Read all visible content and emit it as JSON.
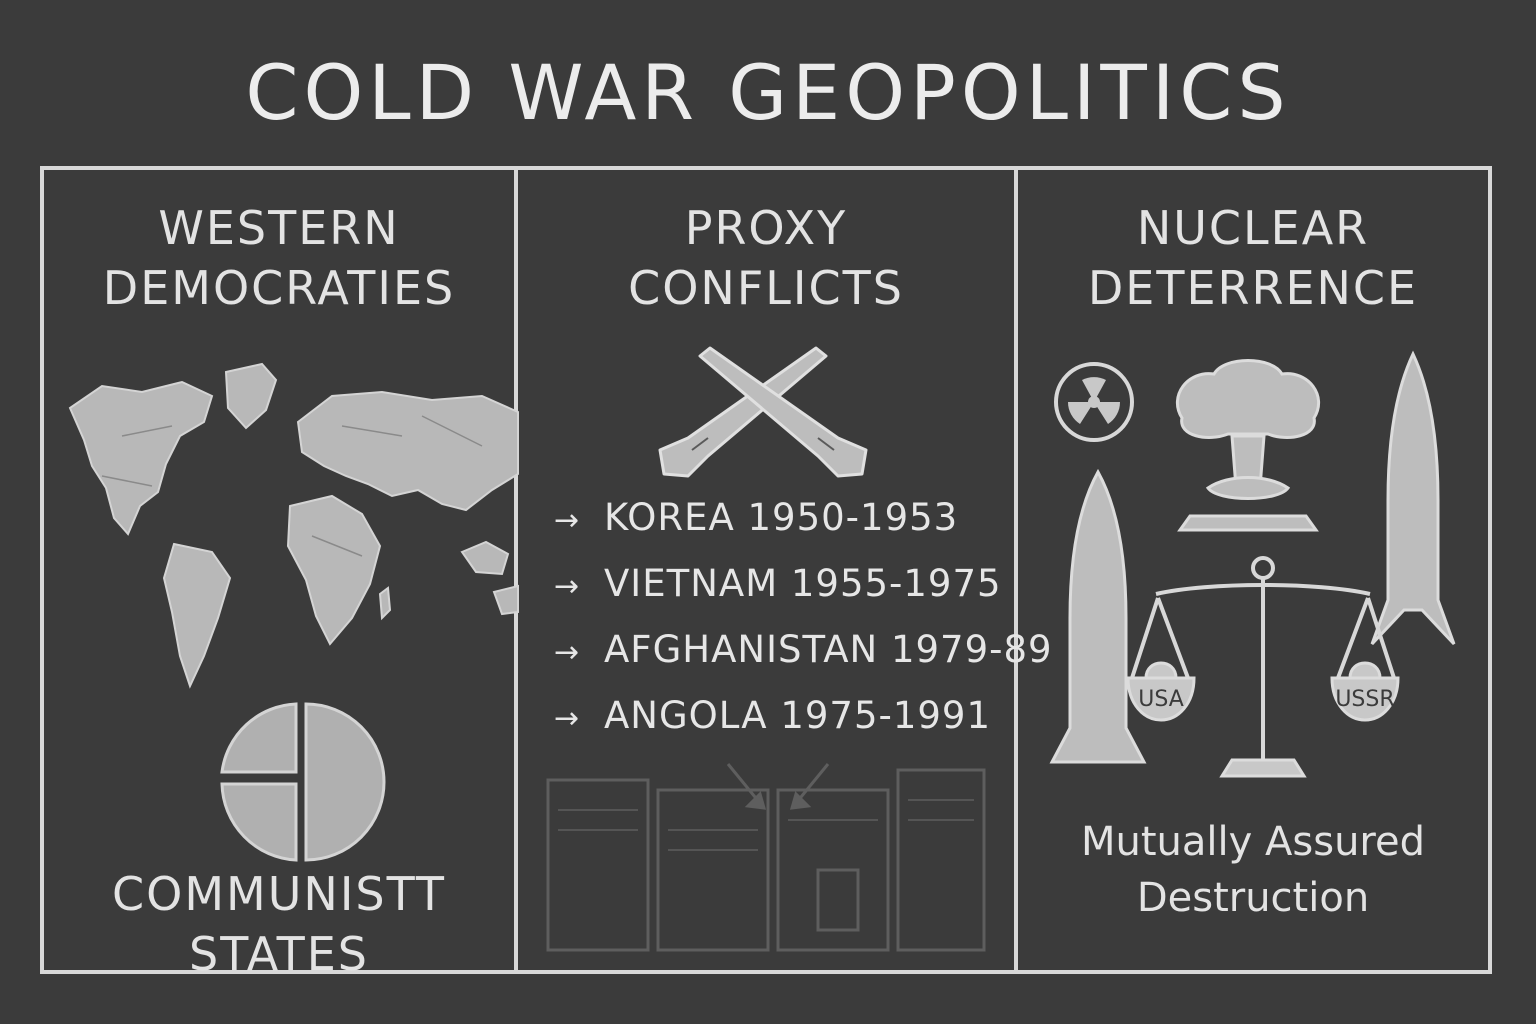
{
  "title": "COLD WAR GEOPOLITICS",
  "panels": {
    "western": {
      "heading_line1": "WESTERN",
      "heading_line2": "DEMOCRATIES",
      "footer_line1": "COMMUNISTT",
      "footer_line2": "STATES",
      "icons": [
        "world-map-icon",
        "pie-chart-icon"
      ]
    },
    "proxy": {
      "heading_line1": "PROXY",
      "heading_line2": "CONFLICTS",
      "icons": [
        "crossed-rifles-icon",
        "newspaper-icon"
      ],
      "conflicts": [
        {
          "arrow": "→",
          "label": "KOREA 1950-1953"
        },
        {
          "arrow": "→",
          "label": "VIETNAM 1955-1975"
        },
        {
          "arrow": "→",
          "label": "AFGHANISTAN 1979-89"
        },
        {
          "arrow": "→",
          "label": "ANGOLA 1975-1991"
        }
      ]
    },
    "nuclear": {
      "heading_line1": "NUCLEAR",
      "heading_line2": "DETERRENCE",
      "icons": [
        "radiation-icon",
        "mushroom-cloud-icon",
        "missile-icon",
        "balance-scale-icon"
      ],
      "scale_left": "USA",
      "scale_right": "USSR",
      "caption_line1": "Mutually Assured",
      "caption_line2": "Destruction"
    }
  },
  "colors": {
    "background": "#3b3b3b",
    "chalk": "#e6e6e6",
    "shade": "#b4b4b4"
  }
}
